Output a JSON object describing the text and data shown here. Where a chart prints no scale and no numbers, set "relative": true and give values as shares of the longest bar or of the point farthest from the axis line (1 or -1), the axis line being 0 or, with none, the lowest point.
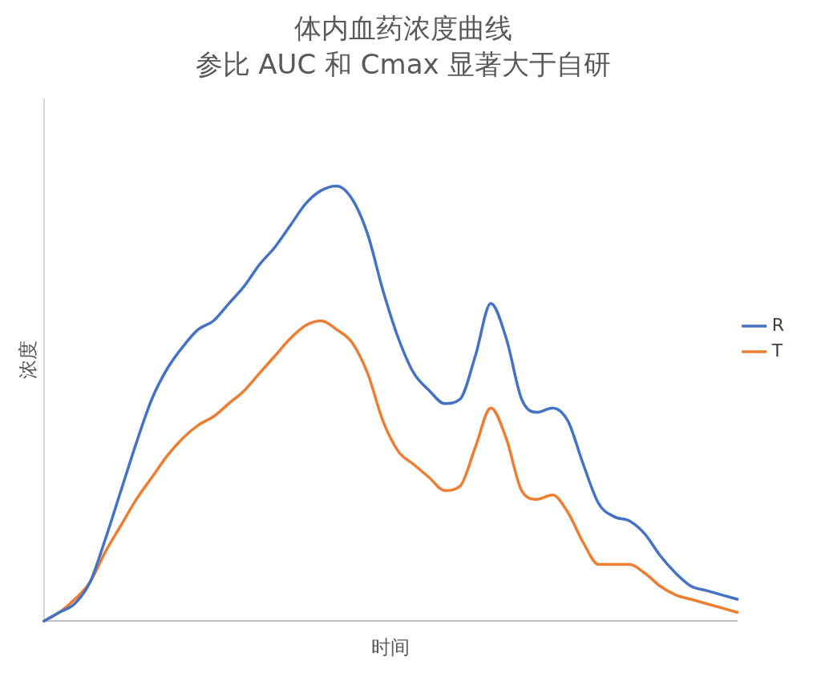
{
  "chart_data": {
    "type": "line",
    "title": "体内血药浓度曲线",
    "subtitle": "参比 AUC 和 Cmax 显著大于自研",
    "xlabel": "时间",
    "ylabel": "浓度",
    "relative": true,
    "legend": "right",
    "grid": false,
    "marker": "none",
    "line_style": "solid",
    "categories": [
      null,
      null,
      null,
      null,
      null,
      null,
      null,
      null,
      null,
      null,
      null,
      null,
      null,
      null,
      null,
      null,
      null,
      null,
      null,
      null,
      null,
      null,
      null,
      null,
      null,
      null,
      null,
      null,
      null,
      null,
      null,
      null,
      null,
      null,
      null,
      null,
      null,
      null,
      null,
      null,
      null,
      null,
      null,
      null,
      null,
      null
    ],
    "series": [
      {
        "name": "R",
        "color": "#4472c4",
        "values": [
          0,
          0.02,
          0.04,
          0.09,
          0.19,
          0.3,
          0.41,
          0.51,
          0.58,
          0.63,
          0.67,
          0.69,
          0.73,
          0.77,
          0.82,
          0.86,
          0.91,
          0.96,
          0.99,
          1,
          0.97,
          0.89,
          0.76,
          0.65,
          0.57,
          0.53,
          0.5,
          0.51,
          0.61,
          0.73,
          0.65,
          0.51,
          0.48,
          0.49,
          0.46,
          0.36,
          0.27,
          0.24,
          0.23,
          0.2,
          0.15,
          0.11,
          0.08,
          0.07,
          0.06,
          0.05
        ]
      },
      {
        "name": "T",
        "color": "#ed7d31",
        "values": [
          0,
          0.02,
          0.05,
          0.09,
          0.16,
          0.22,
          0.28,
          0.33,
          0.38,
          0.42,
          0.45,
          0.47,
          0.5,
          0.53,
          0.57,
          0.61,
          0.65,
          0.68,
          0.69,
          0.67,
          0.64,
          0.57,
          0.46,
          0.39,
          0.36,
          0.33,
          0.3,
          0.31,
          0.4,
          0.49,
          0.42,
          0.3,
          0.28,
          0.29,
          0.25,
          0.18,
          0.13,
          0.13,
          0.13,
          0.11,
          0.08,
          0.06,
          0.05,
          0.04,
          0.03,
          0.02
        ]
      }
    ]
  }
}
